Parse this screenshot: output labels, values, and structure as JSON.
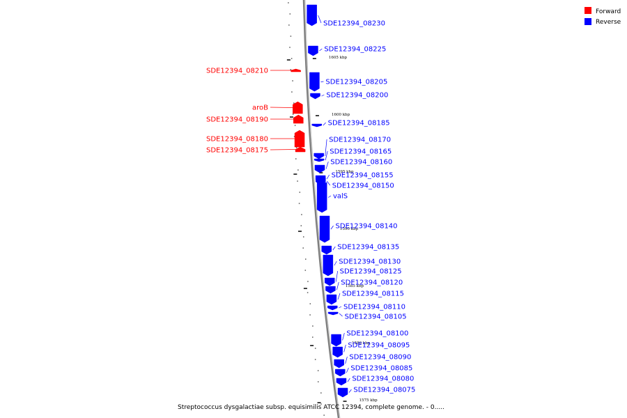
{
  "caption": "Streptococcus dysgalactiae subsp. equisimilis ATCC 12394, complete genome. - 0.....",
  "legend": [
    {
      "label": "Forward",
      "color": "#ff0000"
    },
    {
      "label": "Reverse",
      "color": "#0000ff"
    }
  ],
  "colors": {
    "forward": "#ff0000",
    "reverse": "#0000ff",
    "backbone": "#808080"
  },
  "ticks": [
    {
      "label": "1605 kbp"
    },
    {
      "label": "1600 kbp"
    },
    {
      "label": "1595 kbp"
    },
    {
      "label": "1590 kbp"
    },
    {
      "label": "1585 kbp"
    },
    {
      "label": "1580 kbp"
    },
    {
      "label": "1575 kbp"
    }
  ],
  "features": [
    {
      "name": "SDE12394_08230",
      "strand": "reverse"
    },
    {
      "name": "SDE12394_08225",
      "strand": "reverse"
    },
    {
      "name": "SDE12394_08210",
      "strand": "forward"
    },
    {
      "name": "SDE12394_08205",
      "strand": "reverse"
    },
    {
      "name": "SDE12394_08200",
      "strand": "reverse"
    },
    {
      "name": "aroB",
      "strand": "forward"
    },
    {
      "name": "SDE12394_08190",
      "strand": "forward"
    },
    {
      "name": "SDE12394_08185",
      "strand": "reverse"
    },
    {
      "name": "SDE12394_08180",
      "strand": "forward"
    },
    {
      "name": "SDE12394_08175",
      "strand": "forward"
    },
    {
      "name": "SDE12394_08170",
      "strand": "reverse"
    },
    {
      "name": "SDE12394_08165",
      "strand": "reverse"
    },
    {
      "name": "SDE12394_08160",
      "strand": "reverse"
    },
    {
      "name": "SDE12394_08155",
      "strand": "reverse"
    },
    {
      "name": "SDE12394_08150",
      "strand": "reverse"
    },
    {
      "name": "valS",
      "strand": "reverse"
    },
    {
      "name": "SDE12394_08140",
      "strand": "reverse"
    },
    {
      "name": "SDE12394_08135",
      "strand": "reverse"
    },
    {
      "name": "SDE12394_08130",
      "strand": "reverse"
    },
    {
      "name": "SDE12394_08125",
      "strand": "reverse"
    },
    {
      "name": "SDE12394_08120",
      "strand": "reverse"
    },
    {
      "name": "SDE12394_08115",
      "strand": "reverse"
    },
    {
      "name": "SDE12394_08110",
      "strand": "reverse"
    },
    {
      "name": "SDE12394_08105",
      "strand": "reverse"
    },
    {
      "name": "SDE12394_08100",
      "strand": "reverse"
    },
    {
      "name": "SDE12394_08095",
      "strand": "reverse"
    },
    {
      "name": "SDE12394_08090",
      "strand": "reverse"
    },
    {
      "name": "SDE12394_08085",
      "strand": "reverse"
    },
    {
      "name": "SDE12394_08080",
      "strand": "reverse"
    },
    {
      "name": "SDE12394_08075",
      "strand": "reverse"
    }
  ]
}
